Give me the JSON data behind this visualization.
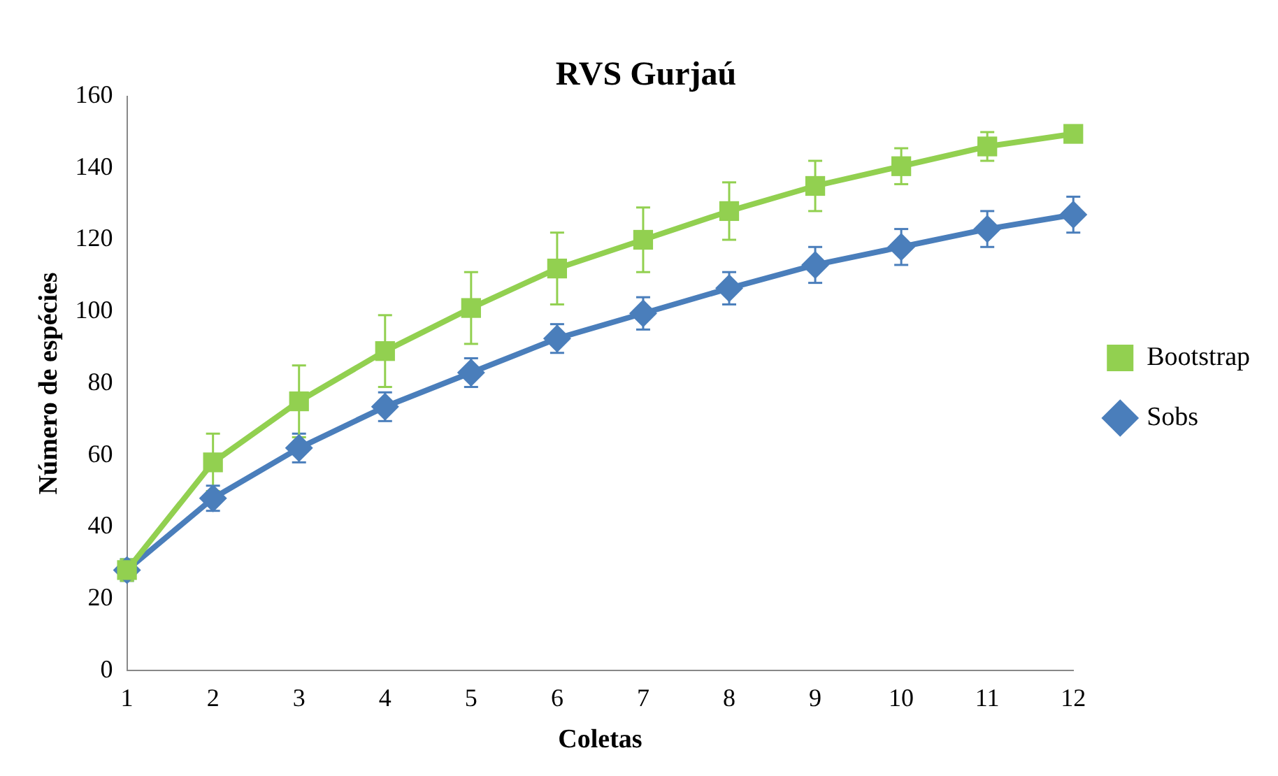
{
  "chart_data": {
    "type": "line",
    "title": "RVS Gurjaú",
    "xlabel": "Coletas",
    "ylabel": "Número de espécies",
    "x": [
      1,
      2,
      3,
      4,
      5,
      6,
      7,
      8,
      9,
      10,
      11,
      12
    ],
    "xlim": [
      1,
      12
    ],
    "xticks": [
      1,
      2,
      3,
      4,
      5,
      6,
      7,
      8,
      9,
      10,
      11,
      12
    ],
    "ylim": [
      0,
      160
    ],
    "yticks": [
      0,
      20,
      40,
      60,
      80,
      100,
      120,
      140,
      160
    ],
    "grid": false,
    "legend": "right",
    "line_style": "solid",
    "series": [
      {
        "name": "Sobs",
        "color": "#4a7ebb",
        "marker": "diamond",
        "values": [
          28,
          48,
          62,
          73.5,
          83,
          92.5,
          99.5,
          106.5,
          113,
          118,
          123,
          127
        ],
        "errors": [
          3,
          3.5,
          4,
          4,
          4,
          4,
          4.5,
          4.5,
          5,
          5,
          5,
          5
        ]
      },
      {
        "name": "Bootstrap",
        "color": "#92d050",
        "marker": "square",
        "values": [
          28,
          58,
          75,
          89,
          101,
          112,
          120,
          128,
          135,
          140.5,
          146,
          149.5
        ],
        "errors": [
          3,
          8,
          10,
          10,
          10,
          10,
          9,
          8,
          7,
          5,
          4,
          null
        ]
      }
    ]
  }
}
